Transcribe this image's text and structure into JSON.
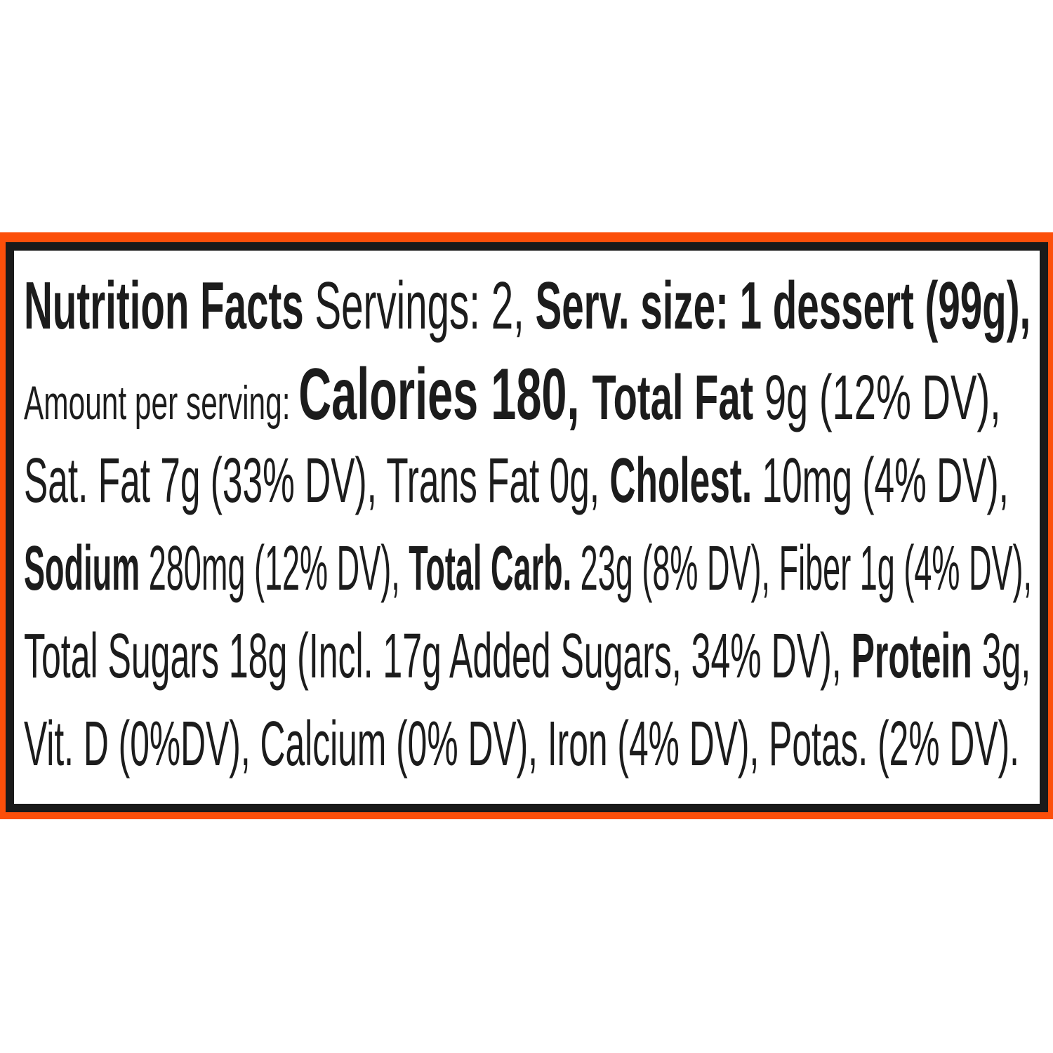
{
  "colors": {
    "band": "#fc4f0a",
    "border": "#1a1a1a",
    "text": "#1c1c1c"
  },
  "label": {
    "title": "Nutrition Facts",
    "servings": " Servings: 2, ",
    "serv_size": "Serv. size: 1 dessert (99g),",
    "amount_per_serving": "Amount per serving: ",
    "calories": "Calories 180, ",
    "total_fat_label": "Total Fat",
    "total_fat_value": " 9g (12% DV),",
    "sat_fat": "Sat. Fat 7g (33% DV), Trans Fat 0g, ",
    "cholest_label": "Cholest.",
    "cholest_value": " 10mg (4% DV),",
    "sodium_label": "Sodium",
    "sodium_value": " 280mg (12% DV), ",
    "total_carb_label": "Total Carb.",
    "total_carb_value": " 23g (8% DV), Fiber 1g (4% DV),",
    "sugars": "Total Sugars 18g (Incl. 17g Added Sugars, 34% DV), ",
    "protein_label": "Protein",
    "protein_value": " 3g,",
    "vitamins": "Vit. D (0%DV), Calcium (0% DV), Iron (4% DV), Potas. (2% DV)."
  }
}
